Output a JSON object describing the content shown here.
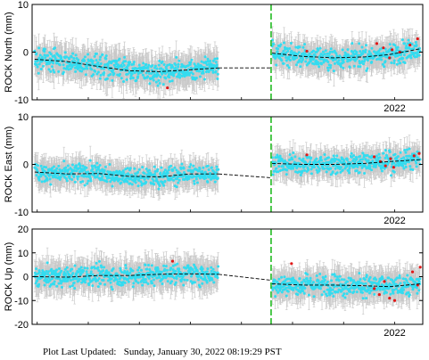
{
  "footer": {
    "label": "Plot Last Updated:",
    "timestamp": "Sunday, January 30, 2022 08:19:29 PST"
  },
  "colors": {
    "data_point": "#33dcf0",
    "error_bar": "#c8c8c8",
    "highlight_point": "#e01818",
    "model_line": "#000000",
    "event_line": "#22bb22"
  },
  "chart_data": [
    {
      "type": "scatter",
      "ylabel": "ROCK North (mm)",
      "ylim": [
        -10,
        10
      ],
      "yticks": [
        "10",
        "0",
        "-10"
      ],
      "x_tick_label": "2022",
      "grid": false,
      "x_range": [
        2014.9,
        2022.55
      ],
      "event_x": 2019.58,
      "segments": [
        {
          "x_start": 2014.95,
          "x_end": 2018.55,
          "model": [
            [
              2014.95,
              -1.5
            ],
            [
              2015.6,
              -2.0
            ],
            [
              2016.2,
              -3.0
            ],
            [
              2016.8,
              -3.9
            ],
            [
              2017.4,
              -4.1
            ],
            [
              2018.0,
              -3.7
            ],
            [
              2018.55,
              -3.3
            ]
          ],
          "noise": 2.4
        },
        {
          "x_start": 2019.6,
          "x_end": 2022.5,
          "model": [
            [
              2019.6,
              -0.2
            ],
            [
              2020.2,
              -0.9
            ],
            [
              2020.8,
              -1.2
            ],
            [
              2021.4,
              -1.0
            ],
            [
              2021.9,
              -0.5
            ],
            [
              2022.5,
              0.7
            ]
          ],
          "noise": 2.2
        }
      ],
      "gap_line": [
        [
          2018.55,
          -3.3
        ],
        [
          2019.58,
          -3.3
        ]
      ],
      "highlights": [
        [
          2020.28,
          0.2
        ],
        [
          2021.65,
          1.8
        ],
        [
          2021.78,
          0.9
        ],
        [
          2021.9,
          -1.2
        ],
        [
          2021.95,
          0.5
        ],
        [
          2022.1,
          0.0
        ],
        [
          2022.3,
          1.5
        ],
        [
          2022.45,
          2.8
        ],
        [
          2017.55,
          -7.5
        ]
      ]
    },
    {
      "type": "scatter",
      "ylabel": "ROCK East (mm)",
      "ylim": [
        -10,
        10
      ],
      "yticks": [
        "10",
        "0",
        "-10"
      ],
      "x_tick_label": "2022",
      "grid": false,
      "x_range": [
        2014.9,
        2022.55
      ],
      "event_x": 2019.58,
      "segments": [
        {
          "x_start": 2014.95,
          "x_end": 2018.55,
          "model": [
            [
              2014.95,
              -1.6
            ],
            [
              2015.6,
              -2.0
            ],
            [
              2016.2,
              -1.9
            ],
            [
              2016.8,
              -2.5
            ],
            [
              2017.4,
              -2.6
            ],
            [
              2018.0,
              -2.0
            ],
            [
              2018.55,
              -2.0
            ]
          ],
          "noise": 2.0
        },
        {
          "x_start": 2019.6,
          "x_end": 2022.5,
          "model": [
            [
              2019.6,
              0.2
            ],
            [
              2020.2,
              0.0
            ],
            [
              2020.8,
              0.0
            ],
            [
              2021.4,
              0.2
            ],
            [
              2021.9,
              0.6
            ],
            [
              2022.5,
              1.0
            ]
          ],
          "noise": 2.0
        }
      ],
      "gap_line": [
        [
          2018.55,
          -2.0
        ],
        [
          2019.58,
          -2.8
        ]
      ],
      "highlights": [
        [
          2020.28,
          2.0
        ],
        [
          2021.6,
          1.6
        ],
        [
          2021.72,
          0.6
        ],
        [
          2021.82,
          -0.3
        ],
        [
          2021.92,
          1.2
        ],
        [
          2021.98,
          -0.6
        ],
        [
          2022.38,
          1.8
        ],
        [
          2022.48,
          2.3
        ]
      ]
    },
    {
      "type": "scatter",
      "ylabel": "ROCK Up (mm)",
      "ylim": [
        -20,
        20
      ],
      "yticks": [
        "20",
        "10",
        "0",
        "-10",
        "-20"
      ],
      "x_tick_label": "2022",
      "grid": false,
      "x_range": [
        2014.9,
        2022.55
      ],
      "event_x": 2019.58,
      "segments": [
        {
          "x_start": 2014.95,
          "x_end": 2018.55,
          "model": [
            [
              2014.95,
              0.0
            ],
            [
              2015.6,
              -0.2
            ],
            [
              2016.2,
              0.5
            ],
            [
              2016.8,
              0.5
            ],
            [
              2017.4,
              1.0
            ],
            [
              2018.0,
              1.2
            ],
            [
              2018.55,
              1.0
            ]
          ],
          "noise": 4.5
        },
        {
          "x_start": 2019.6,
          "x_end": 2022.5,
          "model": [
            [
              2019.6,
              -3.0
            ],
            [
              2020.2,
              -3.5
            ],
            [
              2020.8,
              -3.5
            ],
            [
              2021.4,
              -3.8
            ],
            [
              2021.9,
              -4.2
            ],
            [
              2022.5,
              -3.0
            ]
          ],
          "noise": 4.5
        }
      ],
      "gap_line": [
        [
          2018.55,
          1.0
        ],
        [
          2019.58,
          -1.5
        ]
      ],
      "highlights": [
        [
          2017.65,
          6.5
        ],
        [
          2019.98,
          5.5
        ],
        [
          2021.6,
          -5.0
        ],
        [
          2021.7,
          -7.5
        ],
        [
          2021.8,
          -2.0
        ],
        [
          2021.9,
          -9.0
        ],
        [
          2022.0,
          -10.0
        ],
        [
          2022.35,
          2.0
        ],
        [
          2022.45,
          -3.5
        ],
        [
          2022.5,
          4.0
        ]
      ]
    }
  ]
}
